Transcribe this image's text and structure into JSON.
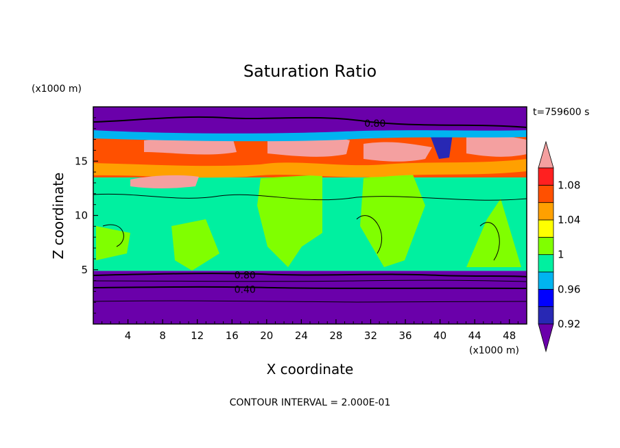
{
  "chart_data": {
    "type": "heatmap",
    "title": "Saturation Ratio",
    "xlabel": "X coordinate",
    "ylabel": "Z coordinate",
    "x_units": "(x1000 m)",
    "y_units": "(x1000 m)",
    "xlim": [
      0,
      50
    ],
    "ylim": [
      0,
      20
    ],
    "x_ticks": [
      4,
      8,
      12,
      16,
      20,
      24,
      28,
      32,
      36,
      40,
      44,
      48
    ],
    "y_ticks": [
      5,
      10,
      15
    ],
    "time_label": "t=759600 s",
    "footer": "CONTOUR INTERVAL = 2.000E-01",
    "contour_labels": [
      {
        "text": "0.80",
        "x": 32.5,
        "z": 18.5
      },
      {
        "text": "0.80",
        "x": 17.5,
        "z": 4.5
      },
      {
        "text": "0.40",
        "x": 17.5,
        "z": 3.2
      }
    ],
    "colorbar": {
      "levels": [
        0.92,
        0.94,
        0.96,
        0.98,
        1.0,
        1.02,
        1.04,
        1.06,
        1.08,
        1.1
      ],
      "tick_labels": [
        "0.92",
        "0.96",
        "1",
        "1.04",
        "1.08"
      ],
      "tick_values": [
        0.92,
        0.96,
        1.0,
        1.04,
        1.08
      ],
      "colors": [
        "#6a00aa",
        "#2828b4",
        "#0000ff",
        "#00b4f0",
        "#00f0a0",
        "#80ff00",
        "#ffff00",
        "#ffa000",
        "#ff5000",
        "#ff2020",
        "#f4a0a0"
      ],
      "extend": "both"
    },
    "regions": [
      {
        "x0": 0,
        "x1": 50,
        "z0": 0,
        "z1": 4.9,
        "value": 0.8
      },
      {
        "x0": 0,
        "x1": 50,
        "z0": 4.9,
        "z1": 13.5,
        "value": 0.99
      },
      {
        "x0": 0,
        "x1": 50,
        "z0": 13.5,
        "z1": 17.5,
        "value": 1.06
      },
      {
        "x0": 0,
        "x1": 50,
        "z0": 17.5,
        "z1": 20,
        "value": 0.8
      }
    ]
  }
}
